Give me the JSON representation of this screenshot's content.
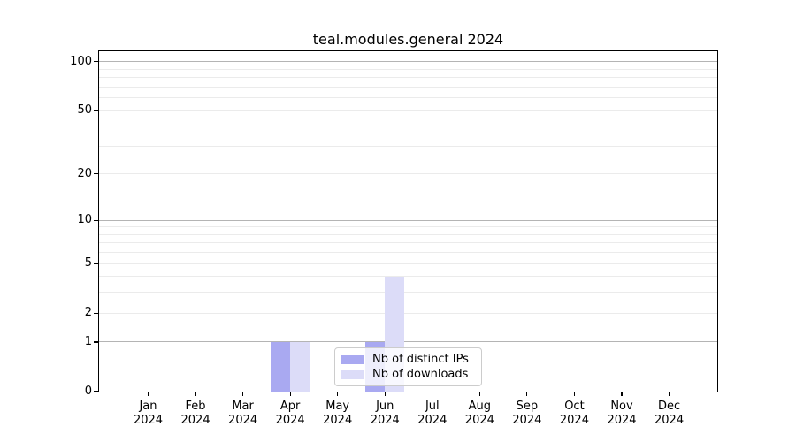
{
  "window": {
    "title": "teal.modules.general 2024"
  },
  "chart_data": {
    "type": "bar",
    "title": "teal.modules.general 2024",
    "xlabel": "",
    "ylabel": "",
    "categories": [
      "Jan 2024",
      "Feb 2024",
      "Mar 2024",
      "Apr 2024",
      "May 2024",
      "Jun 2024",
      "Jul 2024",
      "Aug 2024",
      "Sep 2024",
      "Oct 2024",
      "Nov 2024",
      "Dec 2024"
    ],
    "x_tick_line1": [
      "Jan",
      "Feb",
      "Mar",
      "Apr",
      "May",
      "Jun",
      "Jul",
      "Aug",
      "Sep",
      "Oct",
      "Nov",
      "Dec"
    ],
    "x_tick_line2": [
      "2024",
      "2024",
      "2024",
      "2024",
      "2024",
      "2024",
      "2024",
      "2024",
      "2024",
      "2024",
      "2024",
      "2024"
    ],
    "series": [
      {
        "name": "Nb of distinct IPs",
        "color": "#a9a9f1",
        "values": [
          0,
          0,
          0,
          1,
          0,
          1,
          0,
          0,
          0,
          0,
          0,
          0
        ]
      },
      {
        "name": "Nb of downloads",
        "color": "#dcdcf8",
        "values": [
          0,
          0,
          0,
          1,
          0,
          4,
          0,
          0,
          0,
          0,
          0,
          0
        ]
      }
    ],
    "yscale": "log1p",
    "ylim": [
      0,
      116
    ],
    "y_ticks": [
      0,
      1,
      2,
      5,
      10,
      20,
      50,
      100
    ],
    "y_grid_major": [
      1,
      10,
      100
    ],
    "y_grid_minor": [
      2,
      3,
      4,
      5,
      6,
      7,
      8,
      9,
      20,
      30,
      40,
      50,
      60,
      70,
      80,
      90
    ],
    "grid": true,
    "legend_position": "lower center",
    "colors": {
      "grid_major": "#b4b4b4",
      "grid_minor": "#ebebeb",
      "axis": "#000000",
      "background": "#ffffff"
    }
  }
}
